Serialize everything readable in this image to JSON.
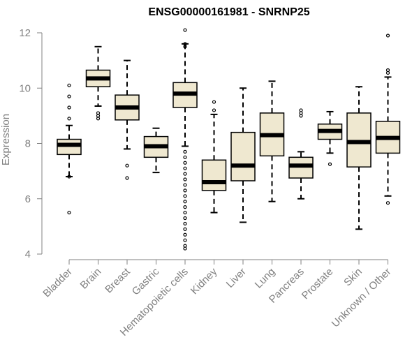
{
  "chart_data": {
    "type": "box",
    "title": "ENSG00000161981 - SNRNP25",
    "xlabel": "",
    "ylabel": "Expression",
    "ylim": [
      4,
      12
    ],
    "yticks": [
      4,
      6,
      8,
      10,
      12
    ],
    "grid": false,
    "legend": "none",
    "categories": [
      "Bladder",
      "Brain",
      "Breast",
      "Gastric",
      "Hematopoietic cells",
      "Kidney",
      "Liver",
      "Lung",
      "Pancreas",
      "Prostate",
      "Skin",
      "Unknown / Other"
    ],
    "boxes": [
      {
        "q1": 7.6,
        "median": 7.95,
        "q3": 8.15,
        "whisker_low": 6.8,
        "whisker_high": 8.65,
        "outliers": [
          5.5,
          6.8,
          8.9,
          9.3,
          9.7,
          10.1
        ]
      },
      {
        "q1": 10.05,
        "median": 10.35,
        "q3": 10.65,
        "whisker_low": 9.35,
        "whisker_high": 11.5,
        "outliers": [
          8.9,
          9.0,
          9.1
        ]
      },
      {
        "q1": 8.85,
        "median": 9.3,
        "q3": 9.75,
        "whisker_low": 7.8,
        "whisker_high": 11.0,
        "outliers": [
          6.75,
          7.2
        ]
      },
      {
        "q1": 7.5,
        "median": 7.9,
        "q3": 8.25,
        "whisker_low": 6.95,
        "whisker_high": 8.55,
        "outliers": []
      },
      {
        "q1": 9.3,
        "median": 9.8,
        "q3": 10.2,
        "whisker_low": 7.9,
        "whisker_high": 11.6,
        "outliers": [
          12.1,
          11.5,
          11.6,
          7.7,
          7.5,
          7.3,
          7.1,
          6.9,
          6.7,
          6.5,
          6.3,
          6.1,
          5.9,
          5.7,
          5.5,
          5.3,
          5.1,
          4.9,
          4.7,
          4.5,
          4.3,
          4.2
        ]
      },
      {
        "q1": 6.3,
        "median": 6.6,
        "q3": 7.4,
        "whisker_low": 5.5,
        "whisker_high": 9.05,
        "outliers": [
          9.2,
          9.5
        ]
      },
      {
        "q1": 6.65,
        "median": 7.2,
        "q3": 8.4,
        "whisker_low": 5.15,
        "whisker_high": 10.0,
        "outliers": []
      },
      {
        "q1": 7.55,
        "median": 8.3,
        "q3": 9.1,
        "whisker_low": 5.9,
        "whisker_high": 10.25,
        "outliers": []
      },
      {
        "q1": 6.75,
        "median": 7.2,
        "q3": 7.5,
        "whisker_low": 6.0,
        "whisker_high": 7.7,
        "outliers": [
          9.0,
          9.1,
          9.2
        ]
      },
      {
        "q1": 8.15,
        "median": 8.45,
        "q3": 8.7,
        "whisker_low": 7.65,
        "whisker_high": 9.15,
        "outliers": [
          7.25
        ]
      },
      {
        "q1": 7.15,
        "median": 8.05,
        "q3": 9.1,
        "whisker_low": 4.9,
        "whisker_high": 10.05,
        "outliers": []
      },
      {
        "q1": 7.65,
        "median": 8.2,
        "q3": 8.8,
        "whisker_low": 6.1,
        "whisker_high": 10.4,
        "outliers": [
          5.85,
          10.55,
          10.65,
          11.9
        ]
      }
    ]
  },
  "colors": {
    "box_fill": "#efe8d0",
    "box_stroke": "#000000",
    "axis": "#808080",
    "title": "#000000"
  }
}
